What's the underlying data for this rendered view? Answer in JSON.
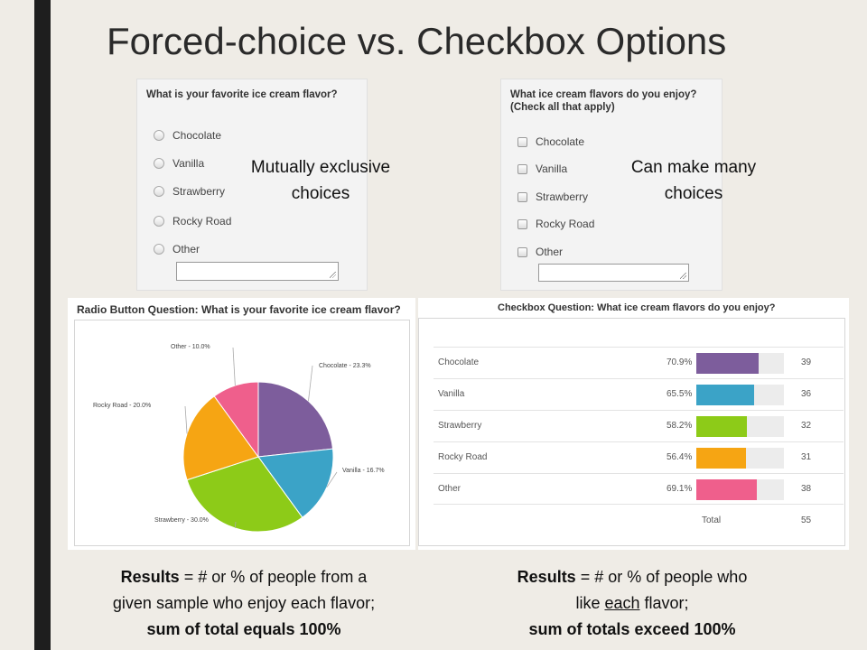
{
  "title": "Forced-choice vs. Checkbox Options",
  "radio_survey": {
    "question": "What is your favorite ice cream flavor?",
    "options": [
      "Chocolate",
      "Vanilla",
      "Strawberry",
      "Rocky Road",
      "Other"
    ]
  },
  "checkbox_survey": {
    "question_line1": "What ice cream flavors do you enjoy?",
    "question_line2": "(Check all that apply)",
    "options": [
      "Chocolate",
      "Vanilla",
      "Strawberry",
      "Rocky Road",
      "Other"
    ]
  },
  "callouts": {
    "radio_line1": "Mutually exclusive",
    "radio_line2": "choices",
    "checkbox_line1": "Can make many",
    "checkbox_line2": "choices"
  },
  "colors": {
    "chocolate": "#7d5d9c",
    "vanilla": "#3ba3c7",
    "strawberry": "#8dcb18",
    "rocky_road": "#f6a513",
    "other": "#ef5f8c"
  },
  "chart_data": [
    {
      "type": "pie",
      "title": "Radio Button Question: What is your favorite ice cream flavor?",
      "slices": [
        {
          "label": "Chocolate",
          "value": 23.3,
          "text": "Chocolate - 23.3%"
        },
        {
          "label": "Vanilla",
          "value": 16.7,
          "text": "Vanilla - 16.7%"
        },
        {
          "label": "Strawberry",
          "value": 30.0,
          "text": "Strawberry - 30.0%"
        },
        {
          "label": "Rocky Road",
          "value": 20.0,
          "text": "Rocky Road - 20.0%"
        },
        {
          "label": "Other",
          "value": 10.0,
          "text": "Other - 10.0%"
        }
      ]
    },
    {
      "type": "bar",
      "title": "Checkbox Question: What ice cream flavors do you enjoy?",
      "categories": [
        "Chocolate",
        "Vanilla",
        "Strawberry",
        "Rocky Road",
        "Other"
      ],
      "percent_labels": [
        "70.9%",
        "65.5%",
        "58.2%",
        "56.4%",
        "69.1%"
      ],
      "values": [
        70.9,
        65.5,
        58.2,
        56.4,
        69.1
      ],
      "counts": [
        "39",
        "36",
        "32",
        "31",
        "38"
      ],
      "total_label": "Total",
      "total": "55"
    }
  ],
  "footer": {
    "left_bold1": "Results",
    "left_rest1": " = # or % of people from a",
    "left_line2": "given sample who enjoy each flavor;",
    "left_line3": "sum of total equals 100%",
    "right_bold1": "Results",
    "right_rest1": " = # or % of people who",
    "right_line2_pre": "like ",
    "right_line2_under": "each",
    "right_line2_post": " flavor;",
    "right_line3": "sum of totals exceed 100%"
  }
}
